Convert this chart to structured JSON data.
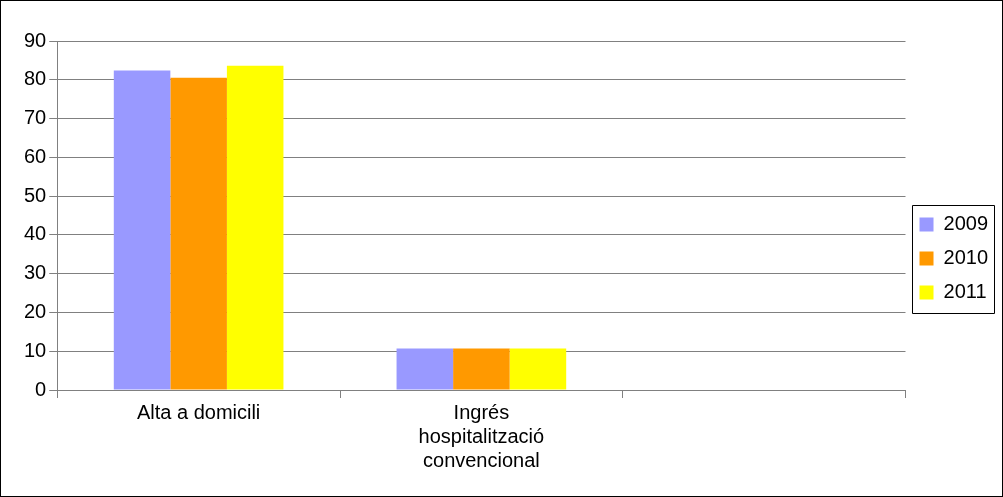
{
  "chart_data": {
    "type": "bar",
    "categories": [
      "Alta a domicili",
      "Ingrés hospitalització convencional",
      null
    ],
    "series": [
      {
        "name": "2009",
        "color": "#9999ff",
        "values": [
          82.4,
          10.7,
          null
        ]
      },
      {
        "name": "2010",
        "color": "#ff9900",
        "values": [
          80.5,
          10.7,
          null
        ]
      },
      {
        "name": "2011",
        "color": "#ffff00",
        "values": [
          83.6,
          10.7,
          null
        ]
      }
    ],
    "ylim": [
      0,
      90
    ],
    "yticks": [
      0,
      10,
      20,
      30,
      40,
      50,
      60,
      70,
      80,
      90
    ],
    "grid": "y",
    "legend": "right"
  }
}
